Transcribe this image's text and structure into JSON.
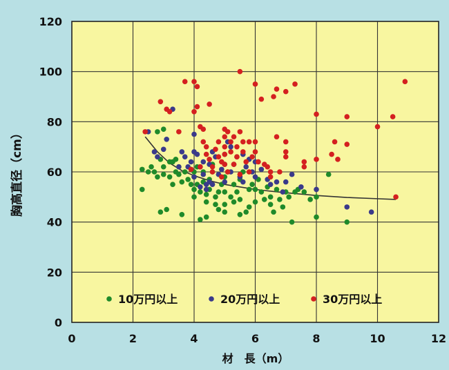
{
  "chart_data": {
    "type": "scatter",
    "title": "",
    "xlabel": "材　長（m）",
    "ylabel": "胸高直径（cm）",
    "xlim": [
      0,
      12
    ],
    "ylim": [
      0,
      120
    ],
    "x_ticks": [
      0,
      2,
      4,
      6,
      8,
      10,
      12
    ],
    "y_ticks": [
      0,
      20,
      40,
      60,
      80,
      100,
      120
    ],
    "grid": true,
    "legend_position": "bottom-inside",
    "colors": {
      "plot_bg": "#f8f6a0",
      "page_bg": "#b8e0e4",
      "grid": "#333333",
      "trend": "#333333"
    },
    "series": [
      {
        "name": "10万円以上",
        "color": "#1f8a2a",
        "points": [
          [
            2.3,
            61
          ],
          [
            2.3,
            53
          ],
          [
            2.5,
            60
          ],
          [
            2.6,
            62
          ],
          [
            2.7,
            60
          ],
          [
            2.8,
            58
          ],
          [
            2.9,
            44
          ],
          [
            3.0,
            59
          ],
          [
            3.0,
            62
          ],
          [
            3.1,
            45
          ],
          [
            3.2,
            58
          ],
          [
            3.3,
            55
          ],
          [
            3.3,
            64
          ],
          [
            3.4,
            60
          ],
          [
            3.5,
            59
          ],
          [
            3.5,
            62
          ],
          [
            3.6,
            43
          ],
          [
            3.6,
            56
          ],
          [
            3.7,
            60
          ],
          [
            3.8,
            57
          ],
          [
            3.9,
            55
          ],
          [
            3.9,
            61
          ],
          [
            4.0,
            50
          ],
          [
            4.0,
            53
          ],
          [
            4.0,
            58
          ],
          [
            4.0,
            60
          ],
          [
            4.1,
            55
          ],
          [
            4.1,
            62
          ],
          [
            4.2,
            41
          ],
          [
            4.2,
            52
          ],
          [
            4.3,
            56
          ],
          [
            4.3,
            60
          ],
          [
            4.4,
            42
          ],
          [
            4.4,
            48
          ],
          [
            4.4,
            51
          ],
          [
            4.5,
            53
          ],
          [
            4.5,
            57
          ],
          [
            4.6,
            60
          ],
          [
            4.6,
            63
          ],
          [
            4.7,
            47
          ],
          [
            4.7,
            50
          ],
          [
            4.8,
            45
          ],
          [
            4.8,
            52
          ],
          [
            4.9,
            55
          ],
          [
            5.0,
            44
          ],
          [
            5.0,
            47
          ],
          [
            5.0,
            52
          ],
          [
            5.0,
            58
          ],
          [
            5.1,
            60
          ],
          [
            5.2,
            50
          ],
          [
            5.3,
            48
          ],
          [
            5.3,
            55
          ],
          [
            5.4,
            52
          ],
          [
            5.5,
            43
          ],
          [
            5.5,
            49
          ],
          [
            5.5,
            57
          ],
          [
            5.6,
            60
          ],
          [
            5.7,
            44
          ],
          [
            5.8,
            46
          ],
          [
            5.8,
            53
          ],
          [
            5.9,
            55
          ],
          [
            6.0,
            48
          ],
          [
            6.0,
            53
          ],
          [
            6.1,
            57
          ],
          [
            6.2,
            52
          ],
          [
            6.3,
            49
          ],
          [
            6.4,
            54
          ],
          [
            6.5,
            47
          ],
          [
            6.5,
            50
          ],
          [
            6.6,
            44
          ],
          [
            6.7,
            53
          ],
          [
            6.8,
            49
          ],
          [
            6.9,
            46
          ],
          [
            7.0,
            52
          ],
          [
            7.1,
            50
          ],
          [
            7.2,
            40
          ],
          [
            7.3,
            52
          ],
          [
            7.4,
            53
          ],
          [
            7.6,
            52
          ],
          [
            7.8,
            49
          ],
          [
            8.0,
            42
          ],
          [
            8.0,
            50
          ],
          [
            8.4,
            59
          ],
          [
            9.0,
            40
          ],
          [
            2.8,
            76
          ],
          [
            3.0,
            77
          ],
          [
            3.2,
            64
          ],
          [
            2.9,
            65
          ],
          [
            3.4,
            65
          ]
        ]
      },
      {
        "name": "20万円以上",
        "color": "#3a3a8a",
        "points": [
          [
            2.5,
            76
          ],
          [
            2.7,
            68
          ],
          [
            2.8,
            66
          ],
          [
            3.0,
            69
          ],
          [
            3.1,
            73
          ],
          [
            3.3,
            85
          ],
          [
            3.5,
            62
          ],
          [
            3.7,
            66
          ],
          [
            3.8,
            62
          ],
          [
            3.9,
            64
          ],
          [
            4.0,
            58
          ],
          [
            4.0,
            68
          ],
          [
            4.1,
            67
          ],
          [
            4.2,
            54
          ],
          [
            4.2,
            62
          ],
          [
            4.3,
            59
          ],
          [
            4.3,
            64
          ],
          [
            4.4,
            53
          ],
          [
            4.5,
            56
          ],
          [
            4.5,
            63
          ],
          [
            4.6,
            68
          ],
          [
            4.7,
            66
          ],
          [
            4.8,
            59
          ],
          [
            4.9,
            61
          ],
          [
            5.0,
            56
          ],
          [
            5.0,
            63
          ],
          [
            5.0,
            67
          ],
          [
            5.1,
            72
          ],
          [
            5.2,
            60
          ],
          [
            5.3,
            63
          ],
          [
            5.4,
            66
          ],
          [
            5.5,
            58
          ],
          [
            5.6,
            56
          ],
          [
            5.7,
            62
          ],
          [
            5.8,
            65
          ],
          [
            5.9,
            60
          ],
          [
            6.0,
            58
          ],
          [
            6.0,
            64
          ],
          [
            6.2,
            61
          ],
          [
            6.4,
            57
          ],
          [
            6.5,
            55
          ],
          [
            6.7,
            56
          ],
          [
            6.9,
            52
          ],
          [
            7.0,
            56
          ],
          [
            7.2,
            59
          ],
          [
            7.5,
            54
          ],
          [
            8.0,
            53
          ],
          [
            9.0,
            46
          ],
          [
            9.8,
            44
          ],
          [
            4.4,
            55
          ],
          [
            4.6,
            55
          ],
          [
            3.6,
            68
          ],
          [
            4.0,
            75
          ],
          [
            5.2,
            70
          ],
          [
            5.6,
            67
          ]
        ]
      },
      {
        "name": "30万円以上",
        "color": "#d42020",
        "points": [
          [
            2.4,
            76
          ],
          [
            2.9,
            88
          ],
          [
            3.1,
            85
          ],
          [
            3.2,
            84
          ],
          [
            3.5,
            76
          ],
          [
            3.7,
            96
          ],
          [
            3.9,
            61
          ],
          [
            4.0,
            96
          ],
          [
            4.0,
            84
          ],
          [
            4.1,
            94
          ],
          [
            4.1,
            86
          ],
          [
            4.2,
            78
          ],
          [
            4.3,
            77
          ],
          [
            4.3,
            72
          ],
          [
            4.4,
            70
          ],
          [
            4.4,
            67
          ],
          [
            4.5,
            65
          ],
          [
            4.5,
            87
          ],
          [
            4.6,
            62
          ],
          [
            4.6,
            60
          ],
          [
            4.7,
            69
          ],
          [
            4.8,
            72
          ],
          [
            4.8,
            66
          ],
          [
            4.9,
            64
          ],
          [
            4.9,
            58
          ],
          [
            5.0,
            77
          ],
          [
            5.0,
            74
          ],
          [
            5.0,
            70
          ],
          [
            5.0,
            67
          ],
          [
            5.0,
            63
          ],
          [
            5.1,
            76
          ],
          [
            5.1,
            60
          ],
          [
            5.2,
            72
          ],
          [
            5.2,
            68
          ],
          [
            5.3,
            74
          ],
          [
            5.3,
            63
          ],
          [
            5.4,
            70
          ],
          [
            5.4,
            66
          ],
          [
            5.5,
            100
          ],
          [
            5.5,
            76
          ],
          [
            5.5,
            59
          ],
          [
            5.6,
            72
          ],
          [
            5.6,
            68
          ],
          [
            5.7,
            64
          ],
          [
            5.8,
            72
          ],
          [
            5.8,
            60
          ],
          [
            5.9,
            66
          ],
          [
            6.0,
            95
          ],
          [
            6.0,
            72
          ],
          [
            6.0,
            68
          ],
          [
            6.1,
            64
          ],
          [
            6.2,
            89
          ],
          [
            6.3,
            63
          ],
          [
            6.4,
            62
          ],
          [
            6.5,
            58
          ],
          [
            6.5,
            60
          ],
          [
            6.6,
            90
          ],
          [
            6.7,
            93
          ],
          [
            6.7,
            74
          ],
          [
            6.8,
            60
          ],
          [
            7.0,
            92
          ],
          [
            7.0,
            72
          ],
          [
            7.0,
            68
          ],
          [
            7.0,
            66
          ],
          [
            7.3,
            95
          ],
          [
            7.6,
            64
          ],
          [
            7.6,
            62
          ],
          [
            8.0,
            83
          ],
          [
            8.0,
            65
          ],
          [
            8.5,
            67
          ],
          [
            8.6,
            72
          ],
          [
            8.7,
            65
          ],
          [
            9.0,
            82
          ],
          [
            9.0,
            71
          ],
          [
            10.0,
            78
          ],
          [
            10.5,
            82
          ],
          [
            10.6,
            50
          ],
          [
            10.9,
            96
          ],
          [
            4.2,
            62
          ]
        ]
      }
    ],
    "trendline": [
      [
        2.4,
        74
      ],
      [
        2.8,
        68
      ],
      [
        3.2,
        63.5
      ],
      [
        3.6,
        60.5
      ],
      [
        4.0,
        58.5
      ],
      [
        4.5,
        56.5
      ],
      [
        5.0,
        55
      ],
      [
        5.5,
        54
      ],
      [
        6.0,
        53
      ],
      [
        6.5,
        52.3
      ],
      [
        7.0,
        51.7
      ],
      [
        8.0,
        50.6
      ],
      [
        9.0,
        49.8
      ],
      [
        10.0,
        49.3
      ],
      [
        10.6,
        49
      ]
    ]
  }
}
